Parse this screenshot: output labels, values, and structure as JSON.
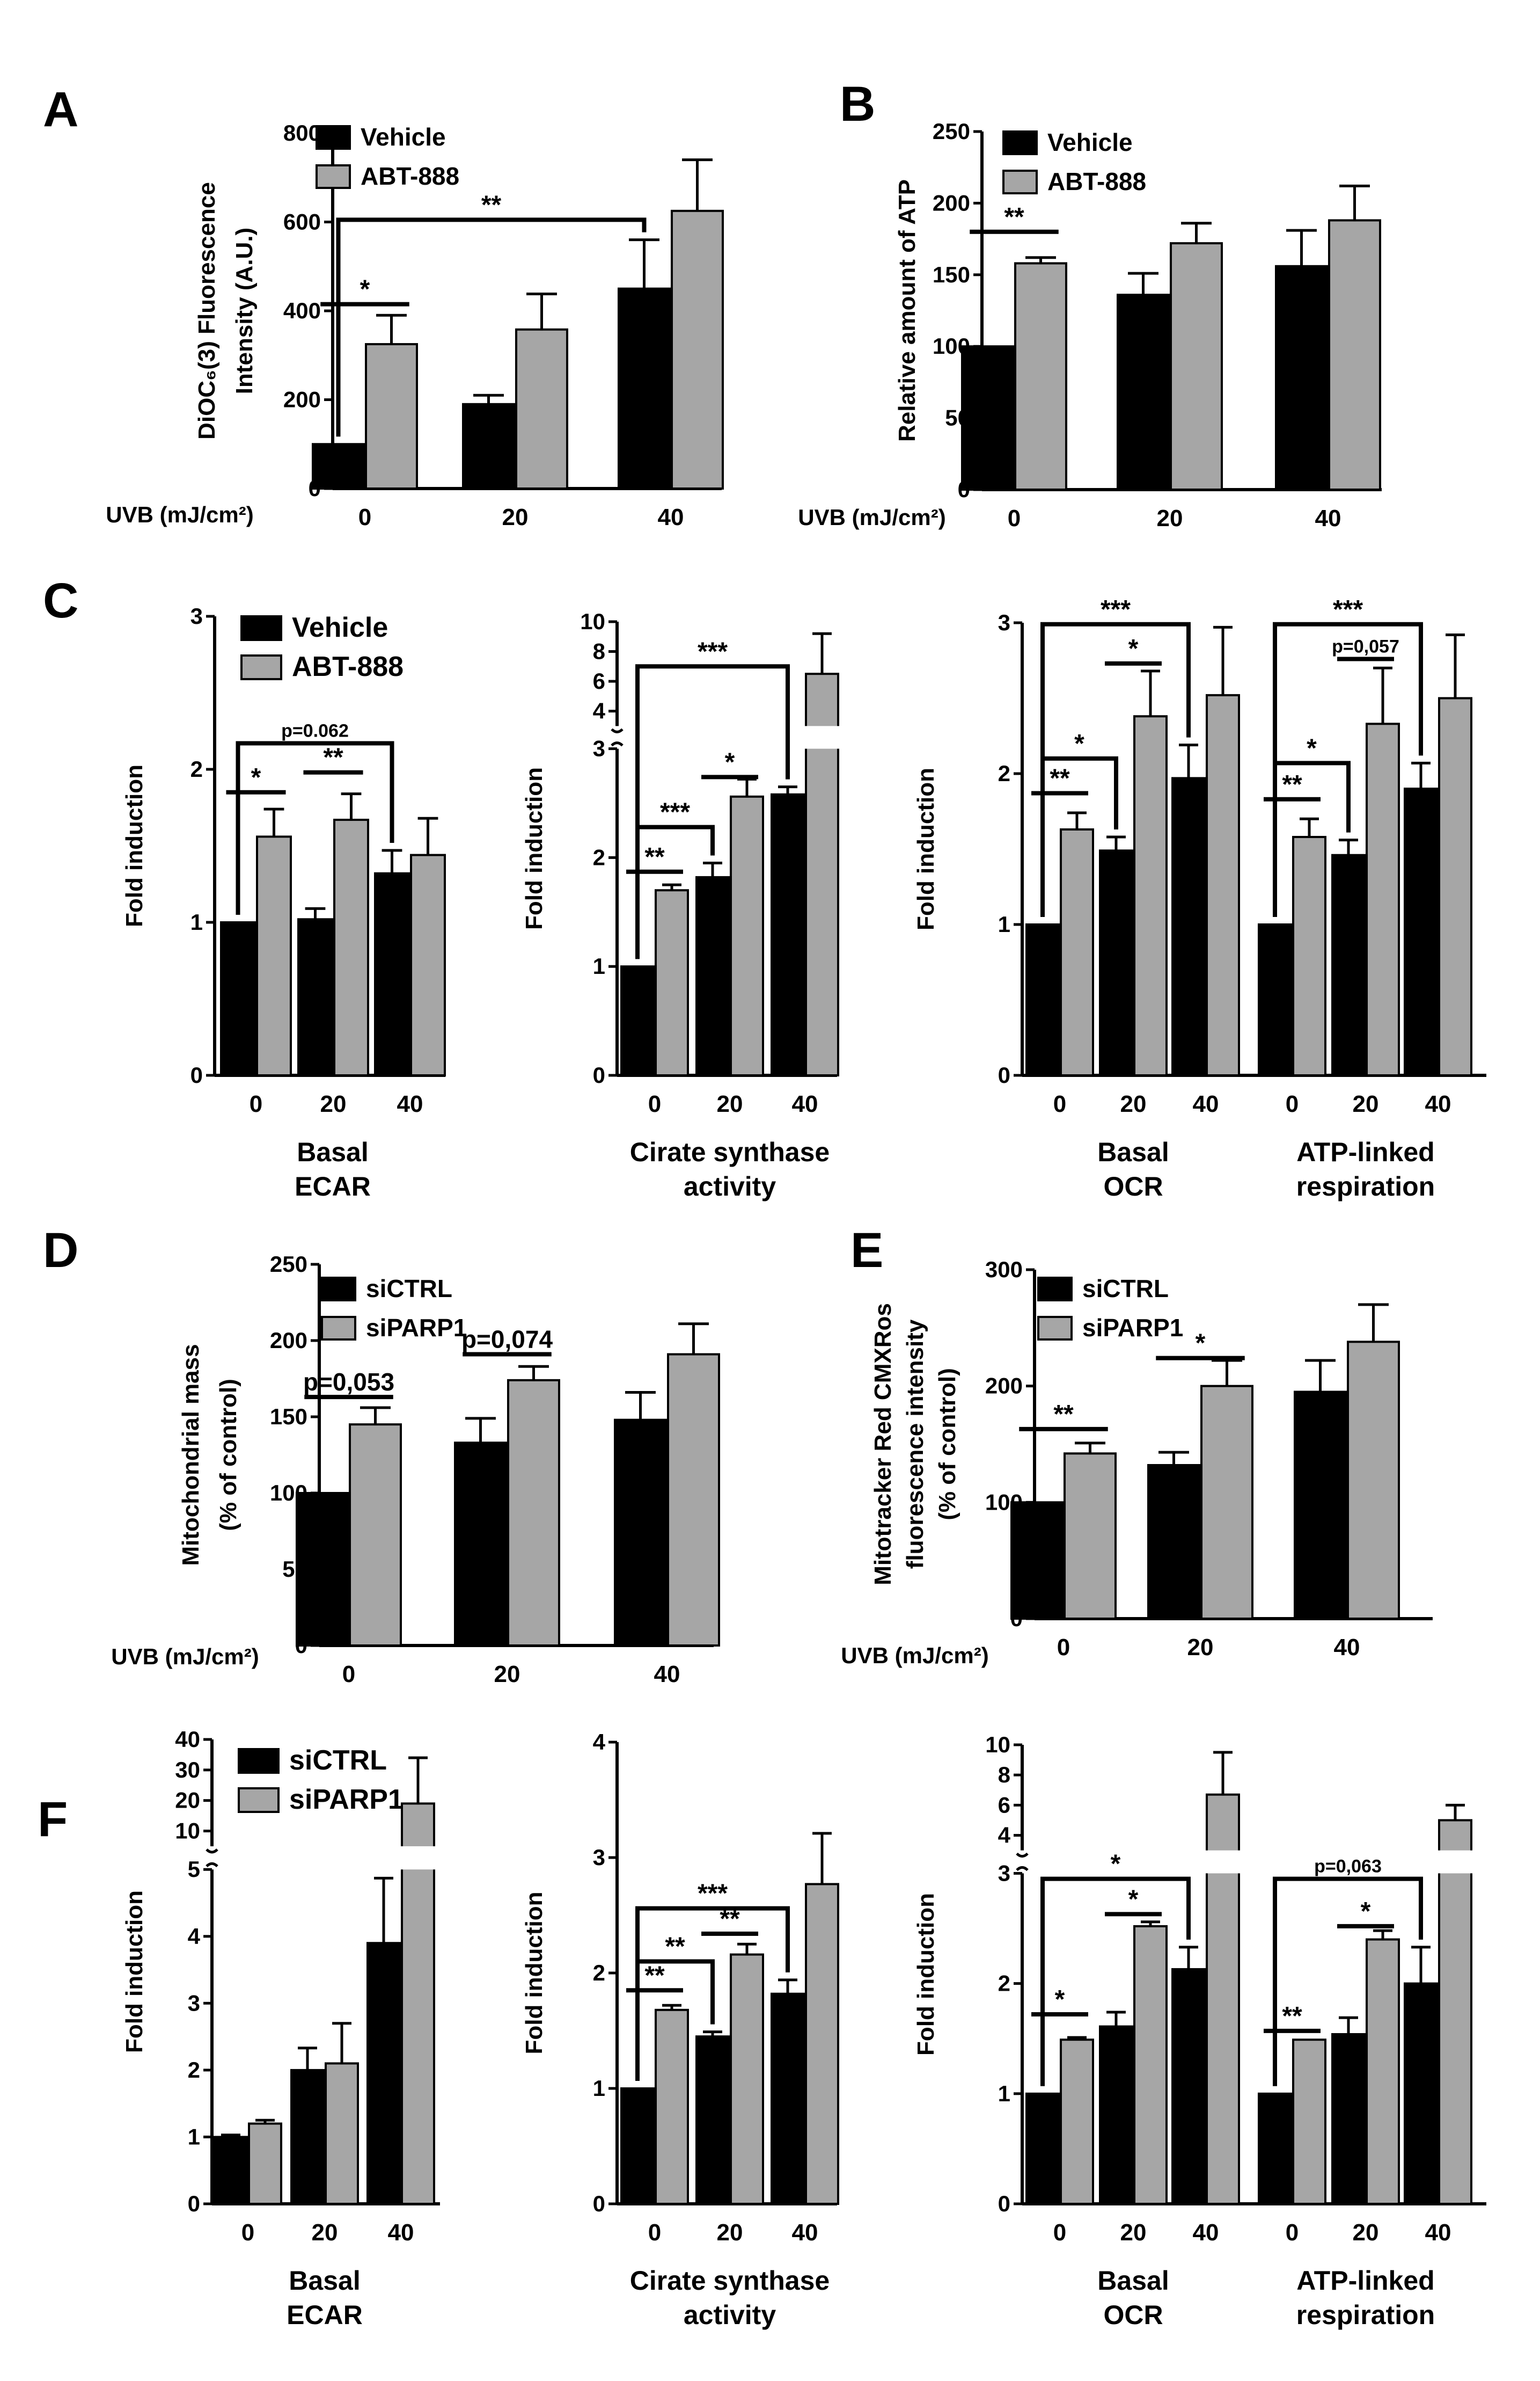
{
  "legend_sets": {
    "abt": [
      "Vehicle",
      "ABT-888"
    ],
    "si": [
      "siCTRL",
      "siPARP1"
    ]
  },
  "colors": {
    "black_bar": "#000000",
    "gray_bar": "#a6a6a6"
  },
  "uvb_label": "UVB (mJ/cm²)",
  "chart_data": [
    {
      "id": "A",
      "panel_label": "A",
      "type": "bar",
      "ylabel": [
        "DiOC₆(3) Fluorescence",
        "Intensity (A.U.)"
      ],
      "xlabel": [
        "UVB (mJ/cm²)"
      ],
      "categories": [
        "0",
        "20",
        "40"
      ],
      "ylim": [
        0,
        800
      ],
      "yticks": [
        "0",
        "200",
        "400",
        "600",
        "800"
      ],
      "legend": "abt",
      "series": [
        {
          "name": "Vehicle",
          "values": [
            100,
            190,
            450
          ],
          "errors": [
            0,
            20,
            110
          ]
        },
        {
          "name": "ABT-888",
          "values": [
            325,
            358,
            625
          ],
          "errors": [
            65,
            80,
            115
          ]
        }
      ],
      "annotations": [
        {
          "text": "*",
          "from": [
            0,
            0
          ],
          "to": [
            0,
            1
          ],
          "y": 415,
          "style": "line"
        },
        {
          "text": "**",
          "from": [
            0,
            0
          ],
          "to": [
            2,
            0
          ],
          "y": 605,
          "style": "bracket"
        }
      ]
    },
    {
      "id": "B",
      "panel_label": "B",
      "type": "bar",
      "ylabel": [
        "Relative amount of ATP"
      ],
      "xlabel": [
        "UVB (mJ/cm²)"
      ],
      "categories": [
        "0",
        "20",
        "40"
      ],
      "ylim": [
        0,
        250
      ],
      "yticks": [
        "0",
        "50",
        "100",
        "150",
        "200",
        "250"
      ],
      "legend": "abt",
      "series": [
        {
          "name": "Vehicle",
          "values": [
            100,
            136,
            156
          ],
          "errors": [
            0,
            15,
            25
          ]
        },
        {
          "name": "ABT-888",
          "values": [
            158,
            172,
            188
          ],
          "errors": [
            4,
            14,
            24
          ]
        }
      ],
      "annotations": [
        {
          "text": "**",
          "from": [
            0,
            0
          ],
          "to": [
            0,
            1
          ],
          "y": 180,
          "style": "line"
        }
      ]
    },
    {
      "id": "C1",
      "panel_label": "C",
      "type": "bar",
      "ylabel": [
        "Fold induction"
      ],
      "xlabel": [
        "Basal",
        "ECAR"
      ],
      "categories": [
        "0",
        "20",
        "40"
      ],
      "ylim": [
        0,
        3
      ],
      "yticks": [
        "0",
        "1",
        "2",
        "3"
      ],
      "legend": "abt",
      "series": [
        {
          "name": "Vehicle",
          "values": [
            1.0,
            1.02,
            1.32
          ],
          "errors": [
            0,
            0.07,
            0.15
          ]
        },
        {
          "name": "ABT-888",
          "values": [
            1.56,
            1.67,
            1.44
          ],
          "errors": [
            0.18,
            0.17,
            0.24
          ]
        }
      ],
      "annotations": [
        {
          "text": "*",
          "from": [
            0,
            0
          ],
          "to": [
            0,
            1
          ],
          "y": 1.85,
          "style": "line"
        },
        {
          "text": "**",
          "from": [
            1,
            0
          ],
          "to": [
            1,
            1
          ],
          "y": 1.98,
          "style": "line"
        },
        {
          "text": "p=0.062",
          "from": [
            0,
            0
          ],
          "to": [
            2,
            0
          ],
          "y": 2.17,
          "style": "bracket",
          "small": true
        }
      ]
    },
    {
      "id": "C2",
      "type": "bar",
      "ylabel": [
        "Fold induction"
      ],
      "xlabel": [
        "Cirate synthase",
        "activity"
      ],
      "categories": [
        "0",
        "20",
        "40"
      ],
      "broken_axis": {
        "lower": [
          0,
          3
        ],
        "upper": [
          3,
          10
        ],
        "lower_frac": 0.72,
        "gap_frac": 0.05
      },
      "yticks_lower": [
        "0",
        "1",
        "2",
        "3"
      ],
      "yticks_upper": [
        "4",
        "6",
        "8",
        "10"
      ],
      "series": [
        {
          "name": "Vehicle",
          "values": [
            1.0,
            1.82,
            2.58
          ],
          "errors": [
            0,
            0.13,
            0.07
          ]
        },
        {
          "name": "ABT-888",
          "values": [
            1.7,
            2.56,
            6.5
          ],
          "errors": [
            0.05,
            0.16,
            2.7
          ]
        }
      ],
      "annotations": [
        {
          "text": "**",
          "from": [
            0,
            0
          ],
          "to": [
            0,
            1
          ],
          "y": 1.87,
          "style": "line"
        },
        {
          "text": "*",
          "from": [
            1,
            0
          ],
          "to": [
            1,
            1
          ],
          "y": 2.74,
          "style": "line"
        },
        {
          "text": "***",
          "from": [
            0,
            0
          ],
          "to": [
            1,
            0
          ],
          "y": 2.28,
          "style": "bracket"
        },
        {
          "text": "***",
          "from": [
            0,
            0
          ],
          "to": [
            2,
            0
          ],
          "y": 7.0,
          "style": "bracket"
        }
      ]
    },
    {
      "id": "C3",
      "type": "bar",
      "ylabel": [
        "Fold induction"
      ],
      "groups": [
        {
          "label": [
            "Basal",
            "OCR"
          ],
          "categories": [
            "0",
            "20",
            "40"
          ]
        },
        {
          "label": [
            "ATP-linked",
            "respiration"
          ],
          "categories": [
            "0",
            "20",
            "40"
          ]
        }
      ],
      "ylim": [
        0,
        3
      ],
      "yticks": [
        "0",
        "1",
        "2",
        "3"
      ],
      "series": [
        {
          "name": "Vehicle",
          "values": [
            1.0,
            1.49,
            1.97,
            1.0,
            1.46,
            1.9
          ],
          "errors": [
            0,
            0.09,
            0.22,
            0,
            0.1,
            0.17
          ]
        },
        {
          "name": "ABT-888",
          "values": [
            1.63,
            2.38,
            2.52,
            1.58,
            2.33,
            2.5
          ],
          "errors": [
            0.11,
            0.3,
            0.45,
            0.12,
            0.37,
            0.42
          ]
        }
      ],
      "annotations": [
        {
          "text": "**",
          "from": [
            0,
            0
          ],
          "to": [
            0,
            1
          ],
          "y": 1.87,
          "style": "line"
        },
        {
          "text": "*",
          "from": [
            0,
            0
          ],
          "to": [
            1,
            0
          ],
          "y": 2.1,
          "style": "bracket"
        },
        {
          "text": "*",
          "from": [
            1,
            0
          ],
          "to": [
            1,
            1
          ],
          "y": 2.73,
          "style": "line"
        },
        {
          "text": "***",
          "from": [
            0,
            0
          ],
          "to": [
            2,
            0
          ],
          "y": 2.99,
          "style": "bracket"
        },
        {
          "text": "**",
          "from": [
            3,
            0
          ],
          "to": [
            3,
            1
          ],
          "y": 1.83,
          "style": "line"
        },
        {
          "text": "*",
          "from": [
            3,
            0
          ],
          "to": [
            4,
            0
          ],
          "y": 2.07,
          "style": "bracket"
        },
        {
          "text": "p=0,057",
          "from": [
            4,
            0
          ],
          "to": [
            4,
            1
          ],
          "y": 2.76,
          "style": "line",
          "small": true
        },
        {
          "text": "***",
          "from": [
            3,
            0
          ],
          "to": [
            5,
            0
          ],
          "y": 2.99,
          "style": "bracket"
        }
      ]
    },
    {
      "id": "D",
      "panel_label": "D",
      "type": "bar",
      "ylabel": [
        "Mitochondrial mass",
        "(% of control)"
      ],
      "xlabel": [
        "UVB (mJ/cm²)"
      ],
      "categories": [
        "0",
        "20",
        "40"
      ],
      "ylim": [
        0,
        250
      ],
      "yticks": [
        "0",
        "50",
        "100",
        "150",
        "200",
        "250"
      ],
      "legend": "si",
      "series": [
        {
          "name": "siCTRL",
          "values": [
            100,
            133,
            148
          ],
          "errors": [
            0,
            16,
            18
          ]
        },
        {
          "name": "siPARP1",
          "values": [
            145,
            174,
            191
          ],
          "errors": [
            11,
            9,
            20
          ]
        }
      ],
      "annotations": [
        {
          "text": "p=0,053",
          "from": [
            0,
            0
          ],
          "to": [
            0,
            1
          ],
          "y": 163,
          "style": "line",
          "medium": true
        },
        {
          "text": "p=0,074",
          "from": [
            1,
            0
          ],
          "to": [
            1,
            1
          ],
          "y": 191,
          "style": "line",
          "medium": true
        }
      ]
    },
    {
      "id": "E",
      "panel_label": "E",
      "type": "bar",
      "ylabel": [
        "Mitotracker Red CMXRos",
        "fluorescence intensity",
        "(% of control)"
      ],
      "xlabel": [
        "UVB (mJ/cm²)"
      ],
      "categories": [
        "0",
        "20",
        "40"
      ],
      "ylim": [
        0,
        300
      ],
      "yticks": [
        "0",
        "100",
        "200",
        "300"
      ],
      "legend": "si",
      "series": [
        {
          "name": "siCTRL",
          "values": [
            100,
            132,
            195
          ],
          "errors": [
            0,
            11,
            27
          ]
        },
        {
          "name": "siPARP1",
          "values": [
            142,
            200,
            238
          ],
          "errors": [
            9,
            22,
            32
          ]
        }
      ],
      "annotations": [
        {
          "text": "**",
          "from": [
            0,
            0
          ],
          "to": [
            0,
            1
          ],
          "y": 163,
          "style": "line"
        },
        {
          "text": "*",
          "from": [
            1,
            0
          ],
          "to": [
            1,
            1
          ],
          "y": 224,
          "style": "line"
        }
      ]
    },
    {
      "id": "F1",
      "panel_label": "F",
      "type": "bar",
      "ylabel": [
        "Fold induction"
      ],
      "xlabel": [
        "Basal",
        "ECAR"
      ],
      "categories": [
        "0",
        "20",
        "40"
      ],
      "broken_axis": {
        "lower": [
          0,
          5
        ],
        "upper": [
          5,
          40
        ],
        "lower_frac": 0.72,
        "gap_frac": 0.05
      },
      "yticks_lower": [
        "0",
        "1",
        "2",
        "3",
        "4",
        "5"
      ],
      "yticks_upper": [
        "10",
        "20",
        "30",
        "40"
      ],
      "legend": "si",
      "series": [
        {
          "name": "siCTRL",
          "values": [
            1.0,
            2.0,
            3.9
          ],
          "errors": [
            0.03,
            0.33,
            0.97
          ]
        },
        {
          "name": "siPARP1",
          "values": [
            1.2,
            2.1,
            19
          ],
          "errors": [
            0.05,
            0.6,
            15
          ]
        }
      ],
      "annotations": []
    },
    {
      "id": "F2",
      "type": "bar",
      "ylabel": [
        "Fold induction"
      ],
      "xlabel": [
        "Cirate synthase",
        "activity"
      ],
      "categories": [
        "0",
        "20",
        "40"
      ],
      "ylim": [
        0,
        4
      ],
      "yticks": [
        "0",
        "1",
        "2",
        "3",
        "4"
      ],
      "series": [
        {
          "name": "siCTRL",
          "values": [
            1.0,
            1.45,
            1.82
          ],
          "errors": [
            0,
            0.04,
            0.12
          ]
        },
        {
          "name": "siPARP1",
          "values": [
            1.68,
            2.16,
            2.77
          ],
          "errors": [
            0.04,
            0.09,
            0.44
          ]
        }
      ],
      "annotations": [
        {
          "text": "**",
          "from": [
            0,
            0
          ],
          "to": [
            0,
            1
          ],
          "y": 1.85,
          "style": "line"
        },
        {
          "text": "**",
          "from": [
            0,
            0
          ],
          "to": [
            1,
            0
          ],
          "y": 2.1,
          "style": "bracket"
        },
        {
          "text": "**",
          "from": [
            1,
            0
          ],
          "to": [
            1,
            1
          ],
          "y": 2.34,
          "style": "line"
        },
        {
          "text": "***",
          "from": [
            0,
            0
          ],
          "to": [
            2,
            0
          ],
          "y": 2.56,
          "style": "bracket"
        }
      ]
    },
    {
      "id": "F3",
      "type": "bar",
      "ylabel": [
        "Fold induction"
      ],
      "groups": [
        {
          "label": [
            "Basal",
            "OCR"
          ],
          "categories": [
            "0",
            "20",
            "40"
          ]
        },
        {
          "label": [
            "ATP-linked",
            "respiration"
          ],
          "categories": [
            "0",
            "20",
            "40"
          ]
        }
      ],
      "broken_axis": {
        "lower": [
          0,
          3
        ],
        "upper": [
          3,
          10
        ],
        "lower_frac": 0.72,
        "gap_frac": 0.05
      },
      "yticks_lower": [
        "0",
        "1",
        "2",
        "3"
      ],
      "yticks_upper": [
        "4",
        "6",
        "8",
        "10"
      ],
      "series": [
        {
          "name": "siCTRL",
          "values": [
            1.0,
            1.61,
            2.13,
            1.0,
            1.54,
            2.0
          ],
          "errors": [
            0,
            0.13,
            0.2,
            0,
            0.15,
            0.33
          ]
        },
        {
          "name": "siPARP1",
          "values": [
            1.49,
            2.52,
            6.7,
            1.49,
            2.4,
            5.0
          ],
          "errors": [
            0.02,
            0.04,
            2.8,
            0,
            0.08,
            1.0
          ]
        }
      ],
      "annotations": [
        {
          "text": "*",
          "from": [
            0,
            0
          ],
          "to": [
            0,
            1
          ],
          "y": 1.72,
          "style": "line"
        },
        {
          "text": "*",
          "from": [
            1,
            0
          ],
          "to": [
            1,
            1
          ],
          "y": 2.63,
          "style": "line"
        },
        {
          "text": "*",
          "from": [
            0,
            0
          ],
          "to": [
            2,
            0
          ],
          "y": 2.95,
          "style": "bracket"
        },
        {
          "text": "**",
          "from": [
            3,
            0
          ],
          "to": [
            3,
            1
          ],
          "y": 1.57,
          "style": "line"
        },
        {
          "text": "*",
          "from": [
            4,
            0
          ],
          "to": [
            4,
            1
          ],
          "y": 2.52,
          "style": "line"
        },
        {
          "text": "p=0,063",
          "from": [
            3,
            0
          ],
          "to": [
            5,
            0
          ],
          "y": 2.95,
          "style": "bracket",
          "small": true
        }
      ]
    }
  ]
}
